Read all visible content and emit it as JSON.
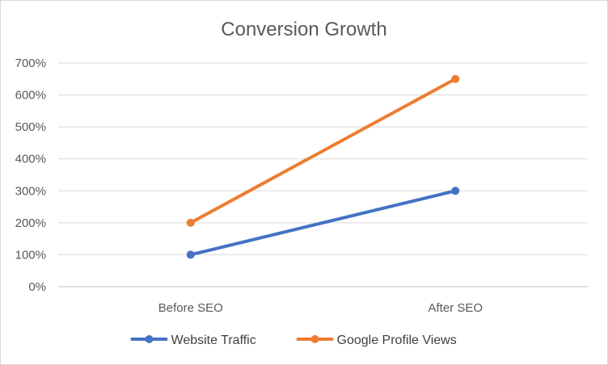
{
  "chart_data": {
    "type": "line",
    "title": "Conversion Growth",
    "categories": [
      "Before SEO",
      "After SEO"
    ],
    "yticks": [
      "0%",
      "100%",
      "200%",
      "300%",
      "400%",
      "500%",
      "600%",
      "700%"
    ],
    "ylim": [
      0,
      700
    ],
    "grid": true,
    "legend_position": "bottom",
    "series": [
      {
        "name": "Website Traffic",
        "values": [
          100,
          300
        ],
        "color": "#4472C4"
      },
      {
        "name": "Google Profile Views",
        "values": [
          200,
          650
        ],
        "color": "#ED7D31"
      }
    ]
  }
}
